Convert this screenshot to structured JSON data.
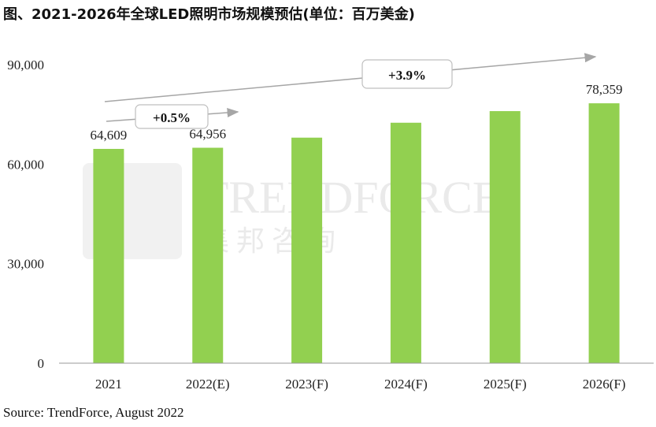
{
  "title": "图、2021-2026年全球LED照明市场规模预估(单位：百万美金)",
  "source": "Source: TrendForce, August 2022",
  "watermark": {
    "brand": "TRENDFORCE",
    "cn": "集 邦 咨 询"
  },
  "colors": {
    "bar": "#92d050",
    "axis": "#9a9a9a",
    "arrow": "#a6a6a6",
    "callout_border": "#bfbfbf"
  },
  "chart_data": {
    "type": "bar",
    "title": "图、2021-2026年全球LED照明市场规模预估(单位：百万美金)",
    "xlabel": "",
    "ylabel": "",
    "categories": [
      "2021",
      "2022(E)",
      "2023(F)",
      "2024(F)",
      "2025(F)",
      "2026(F)"
    ],
    "values": [
      64609,
      64956,
      68000,
      72500,
      76000,
      78359
    ],
    "data_labels": [
      "64,609",
      "64,956",
      "",
      "",
      "",
      "78,359"
    ],
    "ylim": [
      0,
      100000
    ],
    "yticks": [
      0,
      30000,
      60000,
      90000
    ],
    "ytick_labels": [
      "0",
      "30,000",
      "60,000",
      "90,000"
    ],
    "grid": false,
    "legend": "none",
    "annotations": [
      {
        "text": "+0.5%",
        "from": "2021",
        "to": "2022(E)"
      },
      {
        "text": "+3.9%",
        "from": "2021",
        "to": "2026(F)"
      }
    ]
  }
}
